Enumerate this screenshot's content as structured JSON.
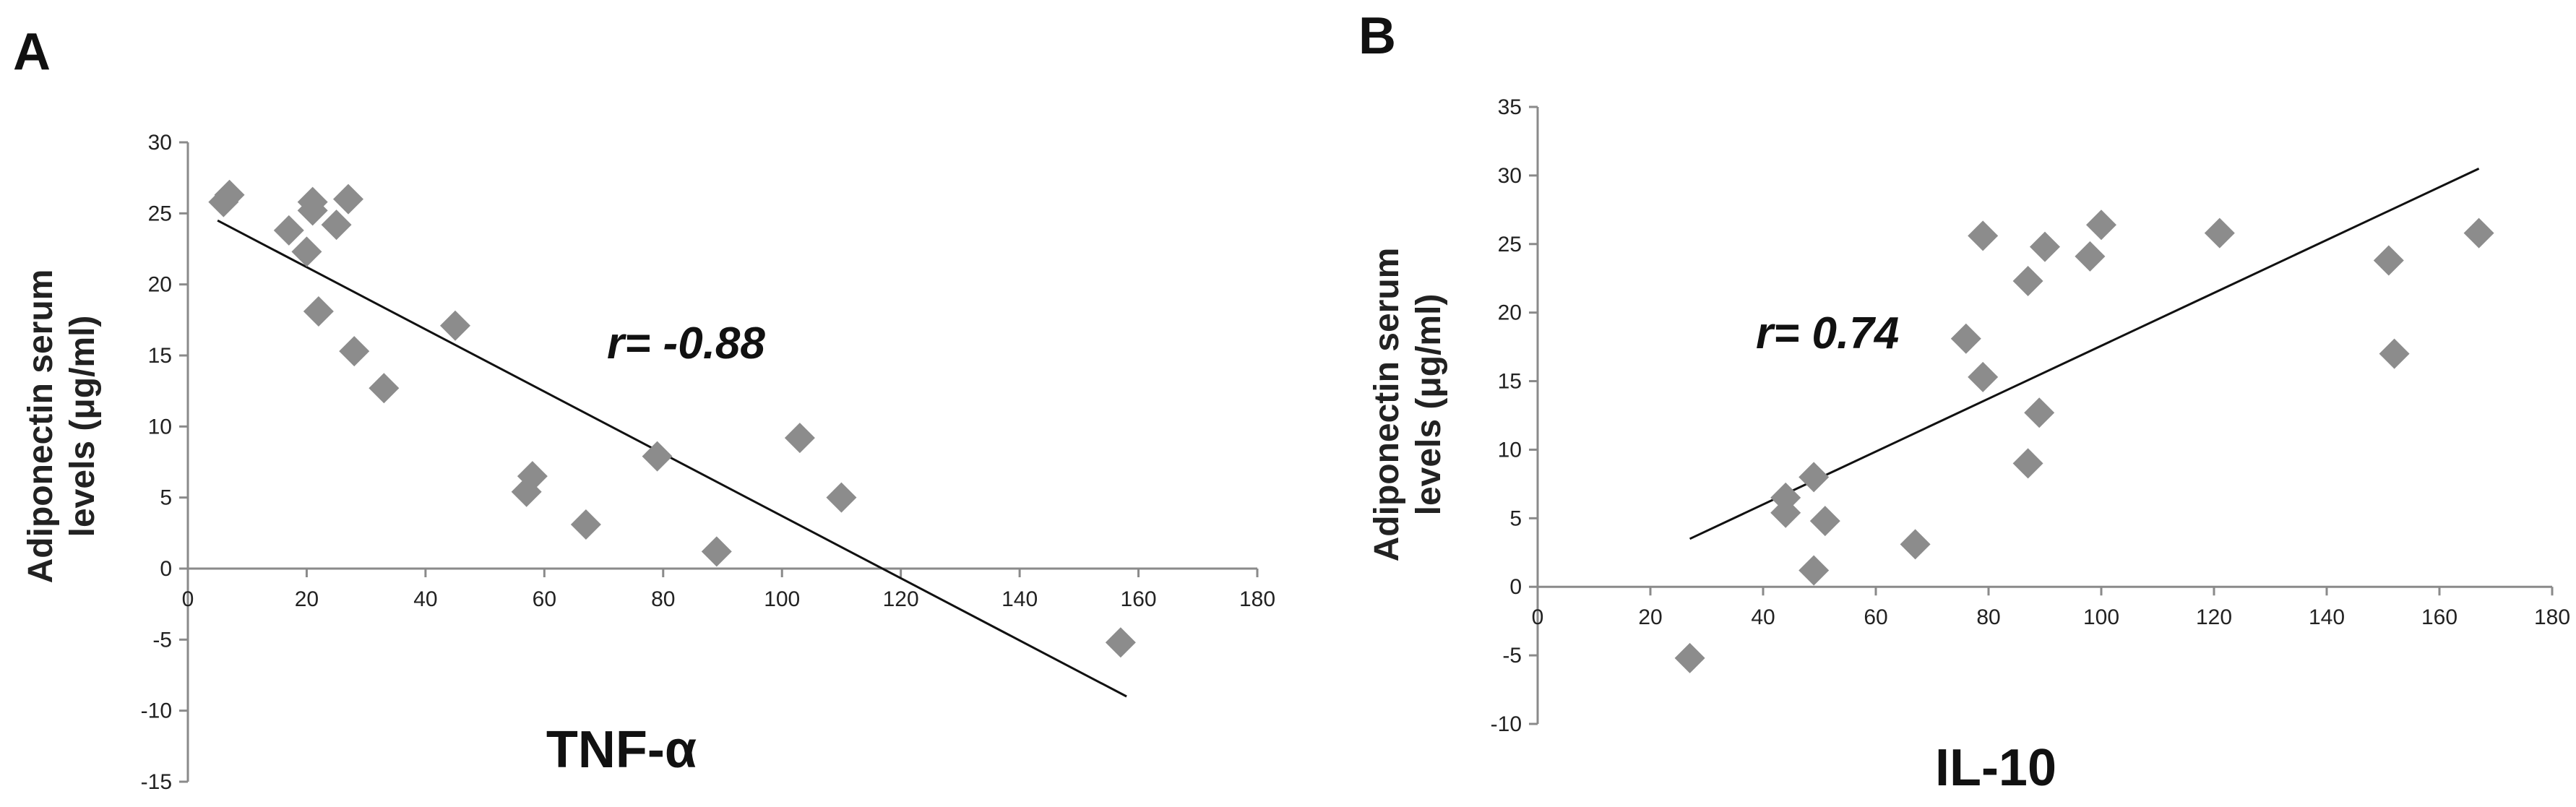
{
  "chart_data": [
    {
      "panel": "A",
      "type": "scatter",
      "xlabel": "TNF-α",
      "ylabel_lines": [
        "Adiponectin serum",
        "levels (μg/ml)"
      ],
      "annotation": "r= -0.88",
      "xlim": [
        0,
        180
      ],
      "ylim": [
        -15,
        30
      ],
      "xticks": [
        0,
        20,
        40,
        60,
        80,
        100,
        120,
        140,
        160,
        180
      ],
      "yticks": [
        30,
        25,
        20,
        15,
        10,
        5,
        0,
        -5,
        -10,
        -15
      ],
      "marker_color": "#8c8c8c",
      "points": [
        {
          "x": 6,
          "y": 25.8
        },
        {
          "x": 7,
          "y": 26.3
        },
        {
          "x": 17,
          "y": 23.8
        },
        {
          "x": 20,
          "y": 22.3
        },
        {
          "x": 21,
          "y": 25.8
        },
        {
          "x": 21,
          "y": 25.2
        },
        {
          "x": 22,
          "y": 18.1
        },
        {
          "x": 25,
          "y": 24.2
        },
        {
          "x": 27,
          "y": 26.0
        },
        {
          "x": 28,
          "y": 15.3
        },
        {
          "x": 33,
          "y": 12.7
        },
        {
          "x": 45,
          "y": 17.1
        },
        {
          "x": 57,
          "y": 5.4
        },
        {
          "x": 58,
          "y": 6.5
        },
        {
          "x": 67,
          "y": 3.1
        },
        {
          "x": 79,
          "y": 7.9
        },
        {
          "x": 89,
          "y": 1.2
        },
        {
          "x": 103,
          "y": 9.2
        },
        {
          "x": 110,
          "y": 5.0
        },
        {
          "x": 157,
          "y": -5.2
        }
      ],
      "trendline": {
        "x": [
          5,
          158
        ],
        "y": [
          24.5,
          -9.0
        ]
      }
    },
    {
      "panel": "B",
      "type": "scatter",
      "xlabel": "IL-10",
      "ylabel_lines": [
        "Adiponectin serum",
        "levels (μg/ml)"
      ],
      "annotation": "r= 0.74",
      "xlim": [
        0,
        180
      ],
      "ylim": [
        -10,
        35
      ],
      "xticks": [
        0,
        20,
        40,
        60,
        80,
        100,
        120,
        140,
        160,
        180
      ],
      "yticks": [
        35,
        30,
        25,
        20,
        15,
        10,
        5,
        0,
        -5,
        -10
      ],
      "marker_color": "#8c8c8c",
      "points": [
        {
          "x": 27,
          "y": -5.2
        },
        {
          "x": 44,
          "y": 5.4
        },
        {
          "x": 44,
          "y": 6.5
        },
        {
          "x": 49,
          "y": 8.0
        },
        {
          "x": 49,
          "y": 1.2
        },
        {
          "x": 51,
          "y": 4.8
        },
        {
          "x": 67,
          "y": 3.1
        },
        {
          "x": 76,
          "y": 18.1
        },
        {
          "x": 79,
          "y": 25.6
        },
        {
          "x": 79,
          "y": 15.3
        },
        {
          "x": 87,
          "y": 22.3
        },
        {
          "x": 87,
          "y": 9.0
        },
        {
          "x": 89,
          "y": 12.7
        },
        {
          "x": 90,
          "y": 24.8
        },
        {
          "x": 98,
          "y": 24.1
        },
        {
          "x": 100,
          "y": 26.4
        },
        {
          "x": 121,
          "y": 25.8
        },
        {
          "x": 151,
          "y": 23.8
        },
        {
          "x": 152,
          "y": 17.0
        },
        {
          "x": 167,
          "y": 25.8
        }
      ],
      "trendline": {
        "x": [
          27,
          167
        ],
        "y": [
          3.5,
          30.5
        ]
      }
    }
  ]
}
